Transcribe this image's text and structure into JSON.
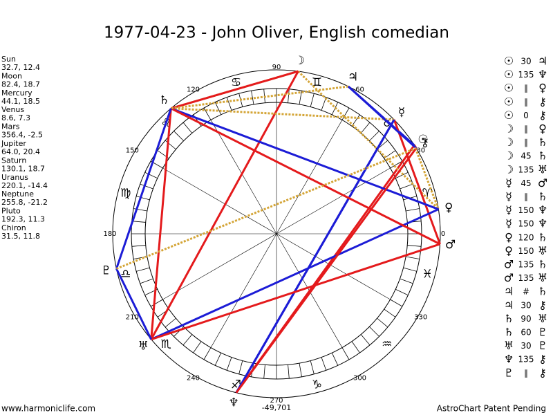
{
  "title": "1977-04-23 - John Oliver, English comedian",
  "planets": [
    {
      "name": "Sun",
      "glyph": "☉",
      "longitude": 32.7,
      "label": "32.7, 12.4"
    },
    {
      "name": "Moon",
      "glyph": "☽",
      "longitude": 82.4,
      "label": "82.4, 18.7"
    },
    {
      "name": "Mercury",
      "glyph": "☿",
      "longitude": 44.1,
      "label": "44.1, 18.5"
    },
    {
      "name": "Venus",
      "glyph": "♀",
      "longitude": 8.6,
      "label": "8.6, 7.3"
    },
    {
      "name": "Mars",
      "glyph": "♂",
      "longitude": 356.4,
      "label": "356.4, -2.5"
    },
    {
      "name": "Jupiter",
      "glyph": "♃",
      "longitude": 64.0,
      "label": "64.0, 20.4"
    },
    {
      "name": "Saturn",
      "glyph": "♄",
      "longitude": 130.1,
      "label": "130.1, 18.7"
    },
    {
      "name": "Uranus",
      "glyph": "♅",
      "longitude": 220.1,
      "label": "220.1, -14.4"
    },
    {
      "name": "Neptune",
      "glyph": "♆",
      "longitude": 255.8,
      "label": "255.8, -21.2"
    },
    {
      "name": "Pluto",
      "glyph": "♇",
      "longitude": 192.3,
      "label": "192.3, 11.3"
    },
    {
      "name": "Chiron",
      "glyph": "⚷",
      "longitude": 31.5,
      "label": "31.5, 11.8"
    }
  ],
  "aspects": [
    {
      "from": "☉",
      "aspect": "30",
      "to": "♃",
      "color": "#1c1cd6"
    },
    {
      "from": "☉",
      "aspect": "135",
      "to": "♆",
      "color": "#e41a1c"
    },
    {
      "from": "☉",
      "aspect": "∥",
      "to": "♀",
      "color": "#d4a537",
      "dotted": true
    },
    {
      "from": "☉",
      "aspect": "∥",
      "to": "⚷",
      "color": "#d4a537",
      "dotted": true
    },
    {
      "from": "☉",
      "aspect": "0",
      "to": "⚷",
      "color": "#e41a1c"
    },
    {
      "from": "☽",
      "aspect": "∥",
      "to": "♀",
      "color": "#d4a537",
      "dotted": true
    },
    {
      "from": "☽",
      "aspect": "∥",
      "to": "♄",
      "color": "#d4a537",
      "dotted": true
    },
    {
      "from": "☽",
      "aspect": "45",
      "to": "♄",
      "color": "#e41a1c"
    },
    {
      "from": "☽",
      "aspect": "135",
      "to": "♅",
      "color": "#e41a1c"
    },
    {
      "from": "☿",
      "aspect": "45",
      "to": "♂",
      "color": "#e41a1c"
    },
    {
      "from": "☿",
      "aspect": "∥",
      "to": "♄",
      "color": "#d4a537",
      "dotted": true
    },
    {
      "from": "☿",
      "aspect": "150",
      "to": "♆",
      "color": "#1c1cd6"
    },
    {
      "from": "☿",
      "aspect": "150",
      "to": "♆",
      "color": "#1c1cd6"
    },
    {
      "from": "♀",
      "aspect": "120",
      "to": "♄",
      "color": "#1c1cd6"
    },
    {
      "from": "♀",
      "aspect": "150",
      "to": "♅",
      "color": "#1c1cd6"
    },
    {
      "from": "♂",
      "aspect": "135",
      "to": "♄",
      "color": "#e41a1c"
    },
    {
      "from": "♂",
      "aspect": "135",
      "to": "♅",
      "color": "#e41a1c"
    },
    {
      "from": "♃",
      "aspect": "#",
      "to": "♄",
      "color": "#d4a537",
      "dotted": true
    },
    {
      "from": "♃",
      "aspect": "30",
      "to": "⚷",
      "color": "#1c1cd6"
    },
    {
      "from": "♄",
      "aspect": "90",
      "to": "♅",
      "color": "#e41a1c"
    },
    {
      "from": "♄",
      "aspect": "60",
      "to": "♇",
      "color": "#1c1cd6"
    },
    {
      "from": "♅",
      "aspect": "30",
      "to": "♇",
      "color": "#1c1cd6"
    },
    {
      "from": "♆",
      "aspect": "135",
      "to": "⚷",
      "color": "#e41a1c"
    },
    {
      "from": "♇",
      "aspect": "∥",
      "to": "⚷",
      "color": "#d4a537",
      "dotted": true
    }
  ],
  "signs": [
    "♈",
    "♉",
    "♊",
    "♋",
    "♌",
    "♍",
    "♎",
    "♏",
    "♐",
    "♑",
    "♒",
    "♓"
  ],
  "ticks": [
    0,
    30,
    60,
    90,
    120,
    150,
    180,
    210,
    240,
    270,
    300,
    330
  ],
  "bottom_value": "-49,701",
  "footer_left": "www.harmoniclife.com",
  "footer_right": "AstroChart Patent Pending"
}
